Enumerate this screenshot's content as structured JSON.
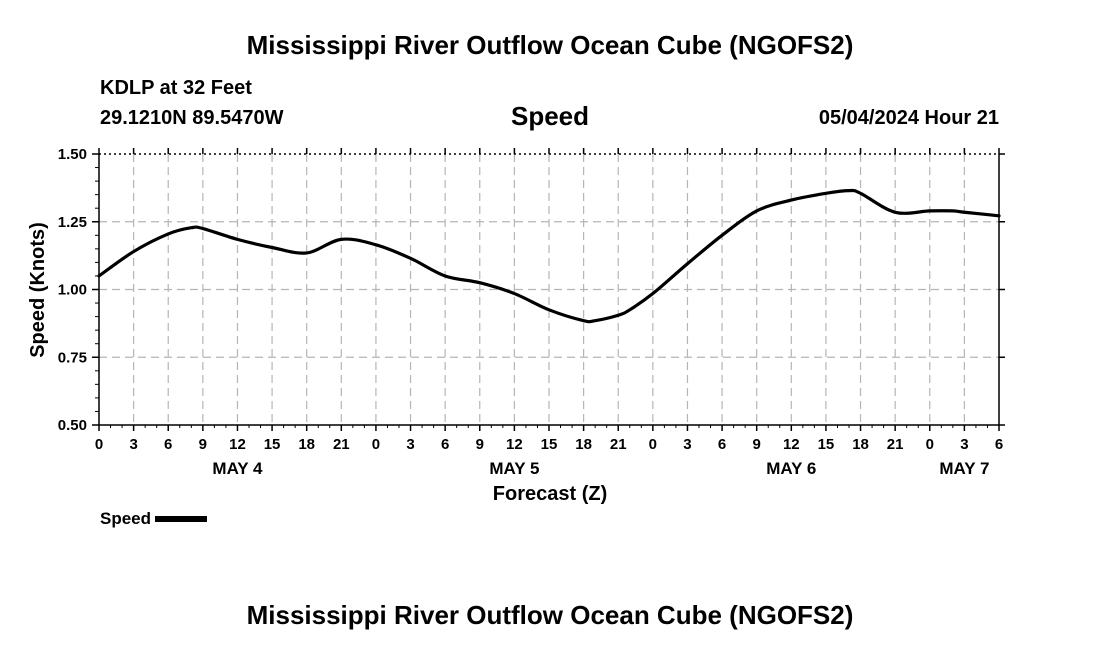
{
  "header": {
    "title": "Mississippi River Outflow Ocean Cube (NGOFS2)",
    "station": "KDLP at 32 Feet",
    "coords": "29.1210N  89.5470W",
    "variable": "Speed",
    "datetime": "05/04/2024 Hour 21"
  },
  "footer": {
    "title": "Mississippi River Outflow Ocean Cube (NGOFS2)"
  },
  "legend": {
    "entries": [
      "Speed"
    ]
  },
  "chart_data": {
    "type": "line",
    "title": "Speed",
    "xlabel": "Forecast (Z)",
    "ylabel": "Speed (Knots)",
    "xlim": [
      0,
      78
    ],
    "ylim": [
      0.5,
      1.5
    ],
    "yticks": [
      0.5,
      0.75,
      1.0,
      1.25,
      1.5
    ],
    "ytick_labels": [
      "0.50",
      "0.75",
      "1.00",
      "1.25",
      "1.50"
    ],
    "xticks": [
      0,
      3,
      6,
      9,
      12,
      15,
      18,
      21,
      24,
      27,
      30,
      33,
      36,
      39,
      42,
      45,
      48,
      51,
      54,
      57,
      60,
      63,
      66,
      69,
      72,
      75,
      78
    ],
    "xtick_labels": [
      "0",
      "3",
      "6",
      "9",
      "12",
      "15",
      "18",
      "21",
      "0",
      "3",
      "6",
      "9",
      "12",
      "15",
      "18",
      "21",
      "0",
      "3",
      "6",
      "9",
      "12",
      "15",
      "18",
      "21",
      "0",
      "3",
      "6"
    ],
    "day_labels": [
      {
        "label": "MAY 4",
        "hour": 12
      },
      {
        "label": "MAY 5",
        "hour": 36
      },
      {
        "label": "MAY 6",
        "hour": 60
      },
      {
        "label": "MAY 7",
        "hour": 75
      }
    ],
    "grid": true,
    "legend_position": "bottom-left",
    "series": [
      {
        "name": "Speed",
        "x": [
          0,
          3,
          6,
          8,
          9,
          12,
          15,
          18,
          21,
          24,
          27,
          30,
          33,
          36,
          39,
          42,
          43,
          45,
          46,
          48,
          51,
          54,
          57,
          60,
          63,
          65,
          66,
          69,
          72,
          74,
          75,
          78
        ],
        "values": [
          1.05,
          1.14,
          1.205,
          1.228,
          1.225,
          1.185,
          1.155,
          1.135,
          1.185,
          1.165,
          1.115,
          1.05,
          1.025,
          0.985,
          0.925,
          0.885,
          0.885,
          0.905,
          0.925,
          0.985,
          1.095,
          1.2,
          1.29,
          1.33,
          1.355,
          1.365,
          1.355,
          1.285,
          1.29,
          1.29,
          1.285,
          1.272
        ]
      }
    ]
  }
}
